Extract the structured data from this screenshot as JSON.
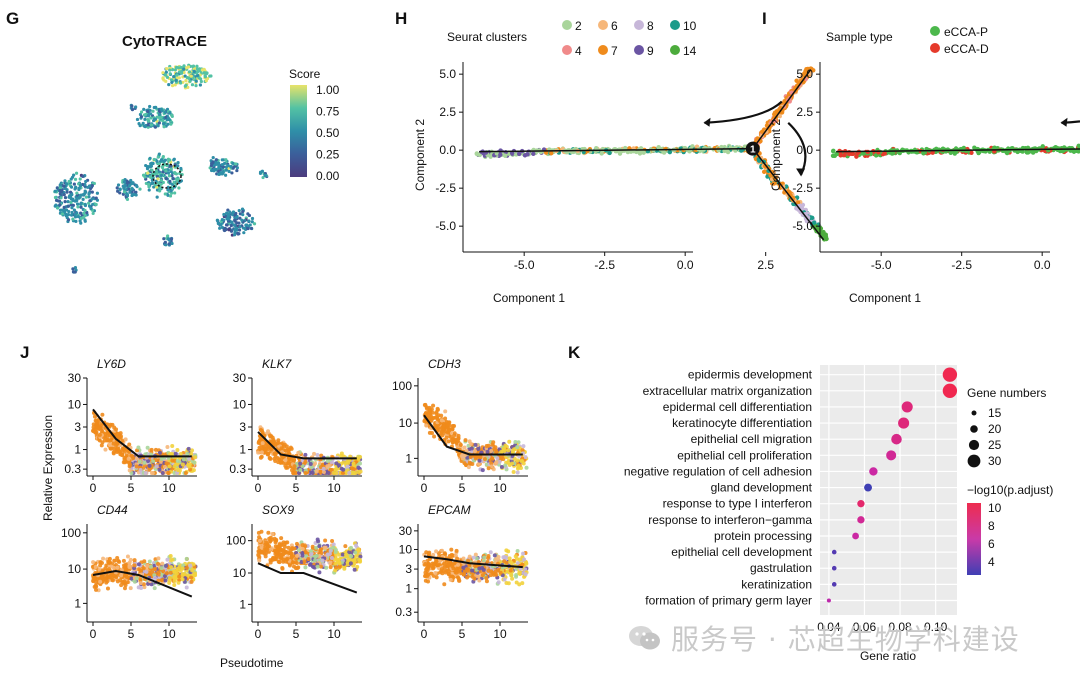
{
  "panels": {
    "G": {
      "letter": "G",
      "title": "CytoTRACE",
      "legend_title": "Score",
      "legend_ticks": [
        "1.00",
        "0.75",
        "0.50",
        "0.25",
        "0.00"
      ],
      "colors": [
        "#e7e36a",
        "#53c2a4",
        "#2f8fa8",
        "#3b5f9b",
        "#4c3c7e"
      ]
    },
    "H": {
      "letter": "H",
      "legend_title": "Seurat clusters",
      "clusters": [
        {
          "label": "2",
          "color": "#a9d59b"
        },
        {
          "label": "6",
          "color": "#f6b77a"
        },
        {
          "label": "8",
          "color": "#c7b7d9"
        },
        {
          "label": "10",
          "color": "#1c9b8a"
        },
        {
          "label": "4",
          "color": "#f08a8a"
        },
        {
          "label": "7",
          "color": "#ef8b1c"
        },
        {
          "label": "9",
          "color": "#6b55a3"
        },
        {
          "label": "14",
          "color": "#4cab3c"
        }
      ],
      "xlabel": "Component 1",
      "ylabel": "Component 2",
      "xticks": [
        "-5.0",
        "-2.5",
        "0.0",
        "2.5"
      ],
      "yticks": [
        "5.0",
        "2.5",
        "0.0",
        "-2.5",
        "-5.0"
      ],
      "branch_label": "1"
    },
    "I": {
      "letter": "I",
      "legend_title": "Sample type",
      "groups": [
        {
          "label": "eCCA-P",
          "color": "#4cb84c"
        },
        {
          "label": "eCCA-D",
          "color": "#e53a2b"
        }
      ],
      "xlabel": "Component 1",
      "ylabel": "Component 2",
      "xticks": [
        "-5.0",
        "-2.5",
        "0.0",
        "2.5"
      ],
      "yticks": [
        "5.0",
        "2.5",
        "0.0",
        "-2.5",
        "-5.0"
      ],
      "branch_label": "1"
    },
    "J": {
      "letter": "J",
      "ylabel": "Relative Expression",
      "xlabel": "Pseudotime",
      "genes": [
        {
          "name": "LY6D",
          "yticks": [
            "30",
            "10",
            "3",
            "1",
            "0.3"
          ]
        },
        {
          "name": "KLK7",
          "yticks": [
            "30",
            "10",
            "3",
            "1",
            "0.3"
          ]
        },
        {
          "name": "CDH3",
          "yticks": [
            "100",
            "10",
            "1"
          ]
        },
        {
          "name": "CD44",
          "yticks": [
            "100",
            "10",
            "1"
          ]
        },
        {
          "name": "SOX9",
          "yticks": [
            "100",
            "10",
            "1"
          ]
        },
        {
          "name": "EPCAM",
          "yticks": [
            "30",
            "10",
            "3",
            "1",
            "0.3"
          ]
        }
      ],
      "xticks": [
        "0",
        "5",
        "10"
      ]
    },
    "K": {
      "letter": "K",
      "xlabel": "Gene ratio",
      "xticks": [
        "0.04",
        "0.06",
        "0.08",
        "0.10"
      ],
      "size_legend_title": "Gene numbers",
      "size_legend": [
        "15",
        "20",
        "25",
        "30"
      ],
      "color_legend_title": "−log10(p.adjust)",
      "color_legend": [
        "10",
        "8",
        "6",
        "4"
      ]
    }
  },
  "chart_data": [
    {
      "type": "scatter",
      "panel": "K",
      "title": "",
      "xlabel": "Gene ratio",
      "ylabel": "",
      "xlim": [
        0.035,
        0.112
      ],
      "terms": [
        "epidermis development",
        "extracellular matrix organization",
        "epidermal cell differentiation",
        "keratinocyte differentiation",
        "epithelial cell migration",
        "epithelial cell proliferation",
        "negative regulation of cell adhesion",
        "gland development",
        "response to type I interferon",
        "response to interferon−gamma",
        "protein processing",
        "epithelial cell development",
        "gastrulation",
        "keratinization",
        "formation of primary germ layer"
      ],
      "x": [
        0.108,
        0.108,
        0.084,
        0.082,
        0.078,
        0.075,
        0.065,
        0.062,
        0.058,
        0.058,
        0.055,
        0.043,
        0.043,
        0.043,
        0.04
      ],
      "gene_numbers": [
        31,
        31,
        25,
        25,
        24,
        23,
        20,
        19,
        18,
        18,
        17,
        13,
        13,
        13,
        12
      ],
      "neg_log10_padj": [
        10,
        10,
        8.5,
        8.5,
        8.0,
        7.5,
        7.0,
        3.5,
        9.0,
        7.5,
        7.0,
        4.0,
        4.0,
        4.0,
        6.5
      ]
    },
    {
      "type": "line",
      "panel": "J",
      "xlabel": "Pseudotime",
      "ylabel": "Relative Expression",
      "x": [
        0,
        5,
        10,
        13
      ],
      "series": [
        {
          "name": "LY6D",
          "values": [
            5,
            0.6,
            0.5,
            0.5
          ]
        },
        {
          "name": "KLK7",
          "values": [
            2.2,
            0.45,
            0.45,
            0.45
          ]
        },
        {
          "name": "CDH3",
          "values": [
            10,
            0.9,
            0.9,
            0.9
          ]
        },
        {
          "name": "CD44",
          "values": [
            5,
            6,
            4,
            2
          ]
        },
        {
          "name": "SOX9",
          "values": [
            30,
            15,
            15,
            8
          ]
        },
        {
          "name": "EPCAM",
          "values": [
            10,
            8,
            7,
            6
          ]
        }
      ]
    }
  ]
}
